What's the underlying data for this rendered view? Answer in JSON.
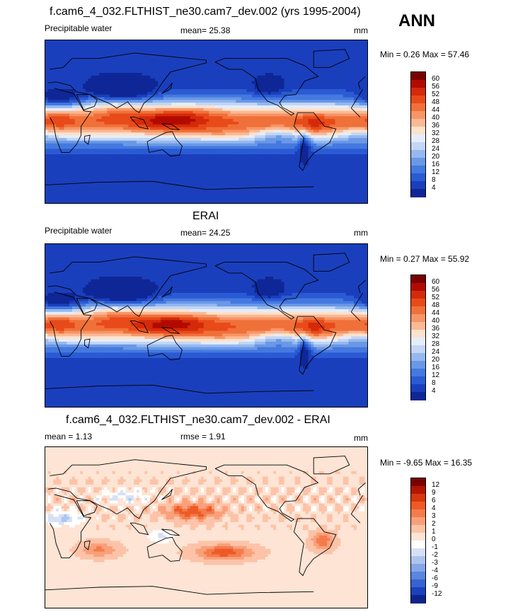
{
  "season": "ANN",
  "panels": [
    {
      "id": "model",
      "title": "f.cam6_4_032.FLTHIST_ne30.cam7_dev.002 (yrs 1995-2004)",
      "left_label": "Precipitable water",
      "center_label": "mean=  25.38",
      "right_label": "mm",
      "minmax": "Min =   0.26 Max =  57.46",
      "colorbar": {
        "labels": [
          "60",
          "56",
          "52",
          "48",
          "44",
          "40",
          "36",
          "32",
          "28",
          "24",
          "20",
          "16",
          "12",
          "8",
          "4"
        ],
        "colors": [
          "#7a0000",
          "#b30a00",
          "#d42a0a",
          "#e84a1a",
          "#f0703a",
          "#f79565",
          "#fbb995",
          "#fde2cc",
          "#e4edfa",
          "#c2d6f5",
          "#95b8ef",
          "#6a98e6",
          "#4479e0",
          "#2a5bd4",
          "#1a3fbd",
          "#0f2796"
        ]
      },
      "field": "pw_model"
    },
    {
      "id": "obs",
      "title": "ERAI",
      "left_label": "Precipitable water",
      "center_label": "mean=  24.25",
      "right_label": "mm",
      "minmax": "Min =   0.27 Max =  55.92",
      "colorbar": {
        "labels": [
          "60",
          "56",
          "52",
          "48",
          "44",
          "40",
          "36",
          "32",
          "28",
          "24",
          "20",
          "16",
          "12",
          "8",
          "4"
        ],
        "colors": [
          "#7a0000",
          "#b30a00",
          "#d42a0a",
          "#e84a1a",
          "#f0703a",
          "#f79565",
          "#fbb995",
          "#fde2cc",
          "#e4edfa",
          "#c2d6f5",
          "#95b8ef",
          "#6a98e6",
          "#4479e0",
          "#2a5bd4",
          "#1a3fbd",
          "#0f2796"
        ]
      },
      "field": "pw_obs"
    },
    {
      "id": "diff",
      "title": "f.cam6_4_032.FLTHIST_ne30.cam7_dev.002 - ERAI",
      "left_label": "mean =   1.13",
      "center_label": "rmse =   1.91",
      "right_label": "mm",
      "minmax": "Min =  -9.65 Max =  16.35",
      "colorbar": {
        "labels": [
          "12",
          "9",
          "6",
          "4",
          "3",
          "2",
          "1",
          "0",
          "-1",
          "-2",
          "-3",
          "-4",
          "-6",
          "-9",
          "-12"
        ],
        "colors": [
          "#7a0000",
          "#b31500",
          "#d8360c",
          "#ee5a26",
          "#f47c4c",
          "#f9a07a",
          "#fcc3a8",
          "#fde4d4",
          "#ffffff",
          "#d6e1f5",
          "#adc4ee",
          "#85a6e6",
          "#5b86de",
          "#3763d2",
          "#1d40bd",
          "#0f238e"
        ]
      },
      "field": "pw_diff"
    }
  ]
}
